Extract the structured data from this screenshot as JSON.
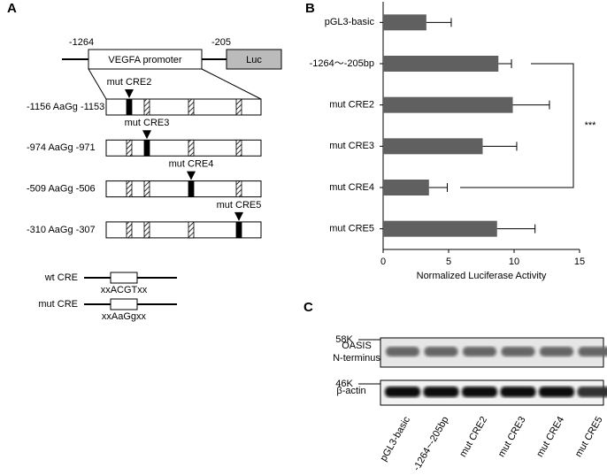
{
  "panel_a": {
    "label": "A",
    "start": "-1264",
    "end": "-205",
    "promoter": "VEGFA promoter",
    "reporter": "Luc",
    "constructs": [
      {
        "site": "-1156 AaGg -1153",
        "mutant": "mut CRE2"
      },
      {
        "site": "-974 AaGg -971",
        "mutant": "mut CRE3"
      },
      {
        "site": "-509 AaGg -506",
        "mutant": "mut CRE4"
      },
      {
        "site": "-310 AaGg -307",
        "mutant": "mut CRE5"
      }
    ],
    "legend": [
      {
        "name": "wt CRE",
        "sequence": "xxACGTxx"
      },
      {
        "name": "mut CRE",
        "sequence": "xxAaGgxx"
      }
    ]
  },
  "chart_data": {
    "type": "hbar",
    "label": "B",
    "xlabel": "Normalized Luciferase Activity",
    "categories": [
      "pGL3-basic",
      "-1264～-205bp",
      "mut CRE2",
      "mut CRE3",
      "mut CRE4",
      "mut CRE5"
    ],
    "values": [
      3.3,
      8.8,
      9.9,
      7.6,
      3.5,
      8.7
    ],
    "errors": [
      1.9,
      1.0,
      2.8,
      2.6,
      1.4,
      2.9
    ],
    "color": "#606060",
    "xlim": [
      0,
      15
    ],
    "xticks": [
      0,
      5,
      10,
      15
    ],
    "annotation": "***"
  },
  "panel_c": {
    "label": "C",
    "rows": [
      {
        "name": "OASIS",
        "name2": "N-terminus",
        "size": "58K"
      },
      {
        "name": "β-actin",
        "size": "46K"
      }
    ],
    "lanes": [
      "pGL3-basic",
      "-1264~-205bp",
      "mut CRE2",
      "mut CRE3",
      "mut CRE4",
      "mut CRE5"
    ]
  }
}
